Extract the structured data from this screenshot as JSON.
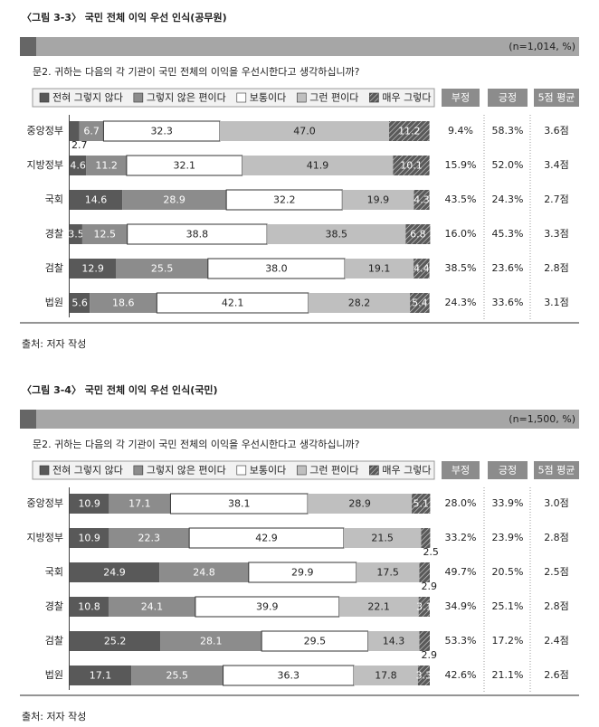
{
  "chart_data": [
    {
      "type": "bar",
      "orientation": "horizontal",
      "stacked": true,
      "title": "〈그림 3-3〉 국민 전체 이익 우선 인식(공무원)",
      "subtitle": "(n=1,014, %)",
      "question": "문2. 귀하는 다음의 각 기관이 국민 전체의 이익을 우선시한다고 생각하십니까?",
      "categories": [
        "중앙정부",
        "지방정부",
        "국회",
        "경찰",
        "검찰",
        "법원"
      ],
      "xlim": [
        0,
        100
      ],
      "series": [
        {
          "name": "전혀 그렇지 않다",
          "color": "#595959",
          "values": [
            2.7,
            4.6,
            14.6,
            3.5,
            12.9,
            5.6
          ],
          "value_labels": [
            "2.7",
            "4.6",
            "14.6",
            "3.5",
            "12.9",
            "5.6"
          ]
        },
        {
          "name": "그렇지 않은 편이다",
          "color": "#8c8c8c",
          "values": [
            6.7,
            11.2,
            28.9,
            12.5,
            25.5,
            18.6
          ],
          "value_labels": [
            "6.7",
            "11.2",
            "28.9",
            "12.5",
            "25.5",
            "18.6"
          ]
        },
        {
          "name": "보통이다",
          "color": "#ffffff",
          "values": [
            32.3,
            32.1,
            32.2,
            38.8,
            38.0,
            42.1
          ],
          "value_labels": [
            "32.3",
            "32.1",
            "32.2",
            "38.8",
            "38.0",
            "42.1"
          ]
        },
        {
          "name": "그런 편이다",
          "color": "#bfbfbf",
          "values": [
            47.0,
            41.9,
            19.9,
            38.5,
            19.1,
            28.2
          ],
          "value_labels": [
            "47.0",
            "41.9",
            "19.9",
            "38.5",
            "19.1",
            "28.2"
          ]
        },
        {
          "name": "매우 그렇다",
          "color": "#595959",
          "hatch": true,
          "values": [
            11.2,
            10.1,
            4.3,
            6.8,
            4.4,
            5.4
          ],
          "value_labels": [
            "11.2",
            "10.1",
            "4.3",
            "6.8",
            "4.4",
            "5.4"
          ]
        }
      ],
      "summary": {
        "columns": [
          "부정",
          "긍정",
          "5점 평균"
        ],
        "rows": [
          [
            "9.4%",
            "58.3%",
            "3.6점"
          ],
          [
            "15.9%",
            "52.0%",
            "3.4점"
          ],
          [
            "43.5%",
            "24.3%",
            "2.7점"
          ],
          [
            "16.0%",
            "45.3%",
            "3.3점"
          ],
          [
            "38.5%",
            "23.6%",
            "2.8점"
          ],
          [
            "24.3%",
            "33.6%",
            "3.1점"
          ]
        ]
      },
      "source": "출처: 저자 작성"
    },
    {
      "type": "bar",
      "orientation": "horizontal",
      "stacked": true,
      "title": "〈그림 3-4〉 국민 전체 이익 우선 인식(국민)",
      "subtitle": "(n=1,500, %)",
      "question": "문2. 귀하는 다음의 각 기관이 국민 전체의 이익을 우선시한다고 생각하십니까?",
      "categories": [
        "중앙정부",
        "지방정부",
        "국회",
        "경찰",
        "검찰",
        "법원"
      ],
      "xlim": [
        0,
        100
      ],
      "series": [
        {
          "name": "전혀 그렇지 않다",
          "color": "#595959",
          "values": [
            10.9,
            10.9,
            24.9,
            10.8,
            25.2,
            17.1
          ],
          "value_labels": [
            "10.9",
            "10.9",
            "24.9",
            "10.8",
            "25.2",
            "17.1"
          ]
        },
        {
          "name": "그렇지 않은 편이다",
          "color": "#8c8c8c",
          "values": [
            17.1,
            22.3,
            24.8,
            24.1,
            28.1,
            25.5
          ],
          "value_labels": [
            "17.1",
            "22.3",
            "24.8",
            "24.1",
            "28.1",
            "25.5"
          ]
        },
        {
          "name": "보통이다",
          "color": "#ffffff",
          "values": [
            38.1,
            42.9,
            29.9,
            39.9,
            29.5,
            36.3
          ],
          "value_labels": [
            "38.1",
            "42.9",
            "29.9",
            "39.9",
            "29.5",
            "36.3"
          ]
        },
        {
          "name": "그런 편이다",
          "color": "#bfbfbf",
          "values": [
            28.9,
            21.5,
            17.5,
            22.1,
            14.3,
            17.8
          ],
          "value_labels": [
            "28.9",
            "21.5",
            "17.5",
            "22.1",
            "14.3",
            "17.8"
          ]
        },
        {
          "name": "매우 그렇다",
          "color": "#595959",
          "hatch": true,
          "values": [
            5.1,
            2.5,
            2.9,
            3.1,
            2.9,
            3.3
          ],
          "value_labels": [
            "5.1",
            "2.5",
            "2.9",
            "3.1",
            "2.9",
            "3.3"
          ]
        }
      ],
      "summary": {
        "columns": [
          "부정",
          "긍정",
          "5점 평균"
        ],
        "rows": [
          [
            "28.0%",
            "33.9%",
            "3.0점"
          ],
          [
            "33.2%",
            "23.9%",
            "2.8점"
          ],
          [
            "49.7%",
            "20.5%",
            "2.5점"
          ],
          [
            "34.9%",
            "25.1%",
            "2.8점"
          ],
          [
            "53.3%",
            "17.2%",
            "2.4점"
          ],
          [
            "42.6%",
            "21.1%",
            "2.6점"
          ]
        ]
      },
      "source": "출처: 저자 작성"
    }
  ]
}
